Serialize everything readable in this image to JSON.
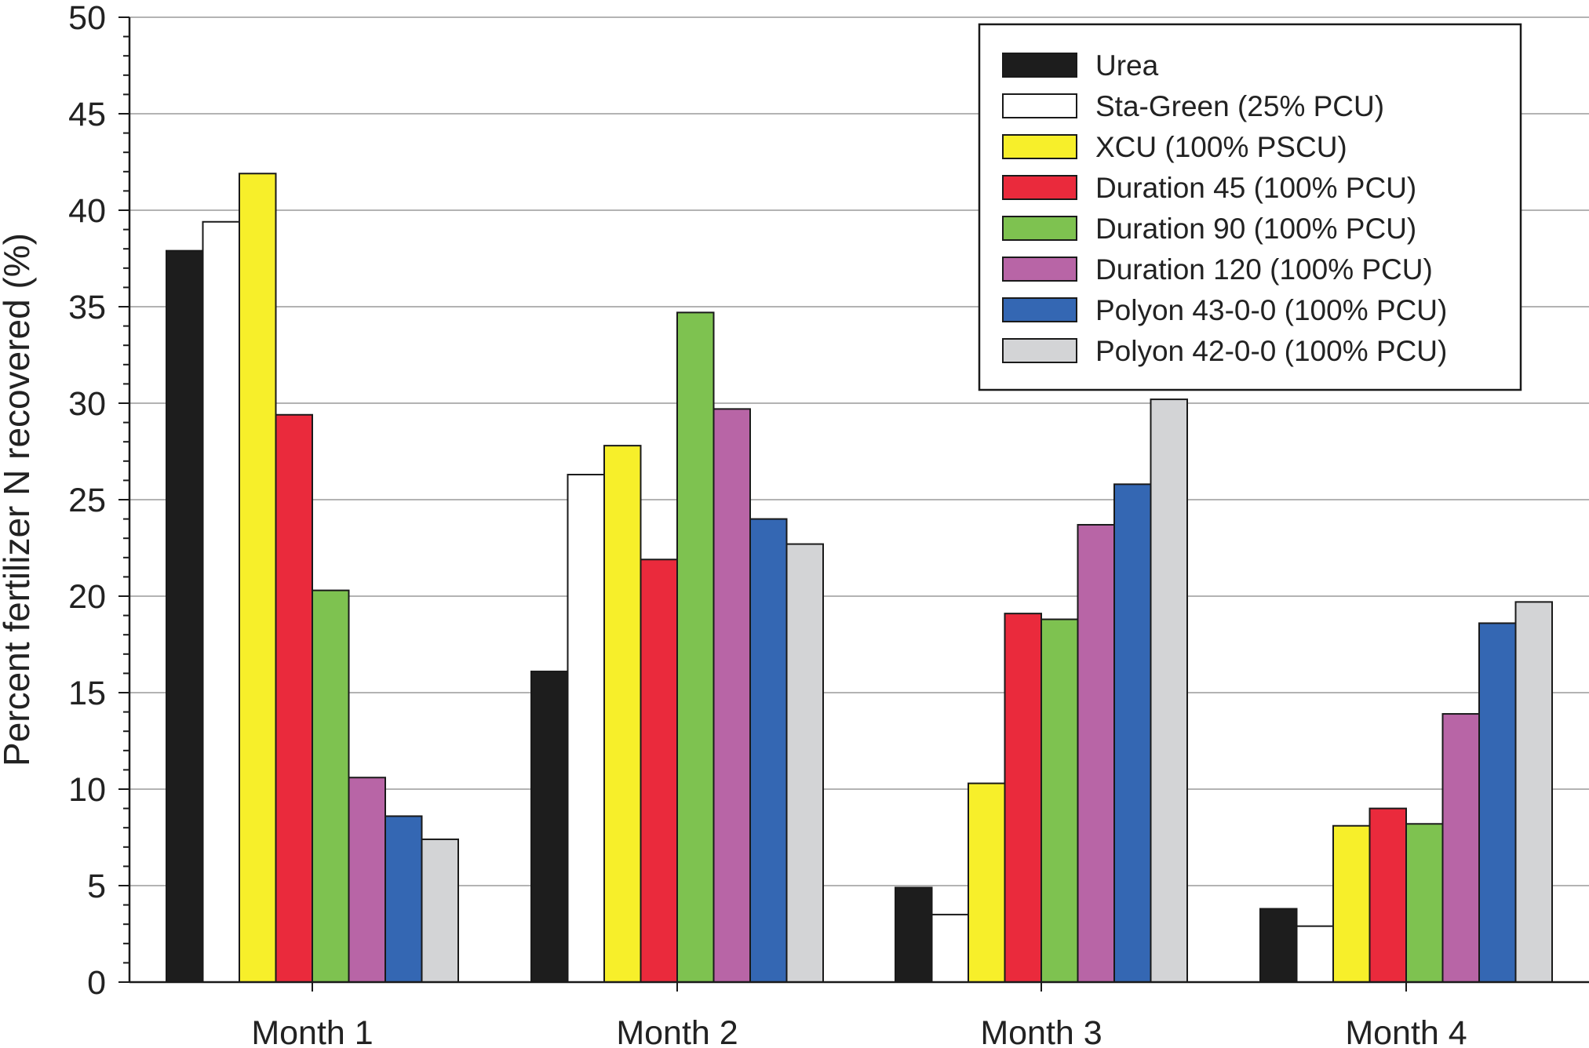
{
  "chart_data": {
    "type": "bar",
    "title": "",
    "xlabel": "",
    "ylabel": "Percent fertilizer N recovered (%)",
    "ylim": [
      0,
      50
    ],
    "yticks": [
      "0",
      "5",
      "10",
      "15",
      "20",
      "25",
      "30",
      "35",
      "40",
      "45",
      "50"
    ],
    "grid": true,
    "legend_position": "top-right",
    "categories": [
      "Month 1",
      "Month 2",
      "Month 3",
      "Month 4"
    ],
    "series": [
      {
        "name": "Urea",
        "color": "#1d1d1d",
        "values": [
          37.9,
          16.1,
          4.9,
          3.8
        ]
      },
      {
        "name": "Sta-Green (25% PCU)",
        "color": "#ffffff",
        "values": [
          39.4,
          26.3,
          3.5,
          2.9
        ]
      },
      {
        "name": "XCU  (100% PSCU)",
        "color": "#f7ef2a",
        "values": [
          41.9,
          27.8,
          10.3,
          8.1
        ]
      },
      {
        "name": "Duration 45 (100% PCU)",
        "color": "#ea2a3c",
        "values": [
          29.4,
          21.9,
          19.1,
          9.0
        ]
      },
      {
        "name": "Duration 90 (100% PCU)",
        "color": "#7ec250",
        "values": [
          20.3,
          34.7,
          18.8,
          8.2
        ]
      },
      {
        "name": "Duration 120 (100% PCU)",
        "color": "#b865a6",
        "values": [
          10.6,
          29.7,
          23.7,
          13.9
        ]
      },
      {
        "name": "Polyon 43-0-0 (100% PCU)",
        "color": "#3467b3",
        "values": [
          8.6,
          24.0,
          25.8,
          18.6
        ]
      },
      {
        "name": "Polyon 42-0-0 (100% PCU)",
        "color": "#d3d4d6",
        "values": [
          7.4,
          22.7,
          30.2,
          19.7
        ]
      }
    ]
  }
}
